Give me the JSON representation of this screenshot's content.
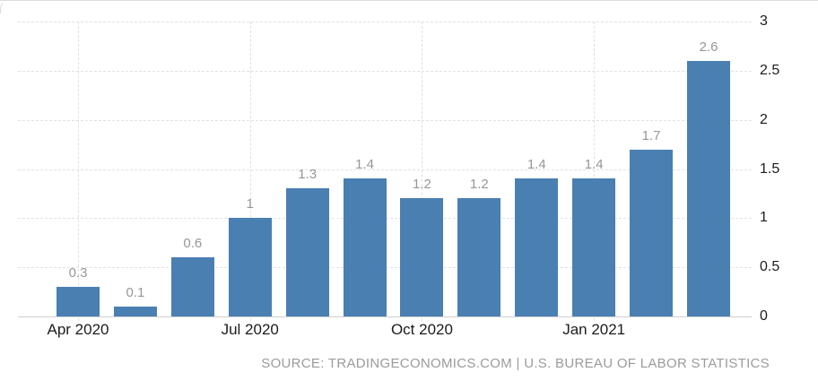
{
  "chart_data": {
    "type": "bar",
    "values": [
      0.3,
      0.1,
      0.6,
      1,
      1.3,
      1.4,
      1.2,
      1.2,
      1.4,
      1.4,
      1.7,
      2.6
    ],
    "bar_labels": [
      "0.3",
      "0.1",
      "0.6",
      "1",
      "1.3",
      "1.4",
      "1.2",
      "1.2",
      "1.4",
      "1.4",
      "1.7",
      "2.6"
    ],
    "x_ticks": [
      {
        "label": "Apr 2020",
        "bar_index": 0
      },
      {
        "label": "Jul 2020",
        "bar_index": 3
      },
      {
        "label": "Oct 2020",
        "bar_index": 6
      },
      {
        "label": "Jan 2021",
        "bar_index": 9
      }
    ],
    "y_ticks": [
      {
        "label": "3",
        "value": 3
      },
      {
        "label": "2.5",
        "value": 2.5
      },
      {
        "label": "2",
        "value": 2
      },
      {
        "label": "1.5",
        "value": 1.5
      },
      {
        "label": "1",
        "value": 1
      },
      {
        "label": "0.5",
        "value": 0.5
      },
      {
        "label": "0",
        "value": 0
      }
    ],
    "ylim": [
      0,
      3
    ],
    "grid": true,
    "y_axis_position": "right",
    "source_text": "SOURCE: TRADINGECONOMICS.COM | U.S. BUREAU OF LABOR STATISTICS",
    "colors": {
      "bar": "#4a7fb2",
      "value_label": "#979797",
      "axis_label": "#1c1c1c",
      "gridline": "#e2e2e2",
      "baseline": "#cfcfcf",
      "source_text": "#9b9b9b",
      "background": "#ffffff",
      "border": "#dcdcdc"
    }
  }
}
